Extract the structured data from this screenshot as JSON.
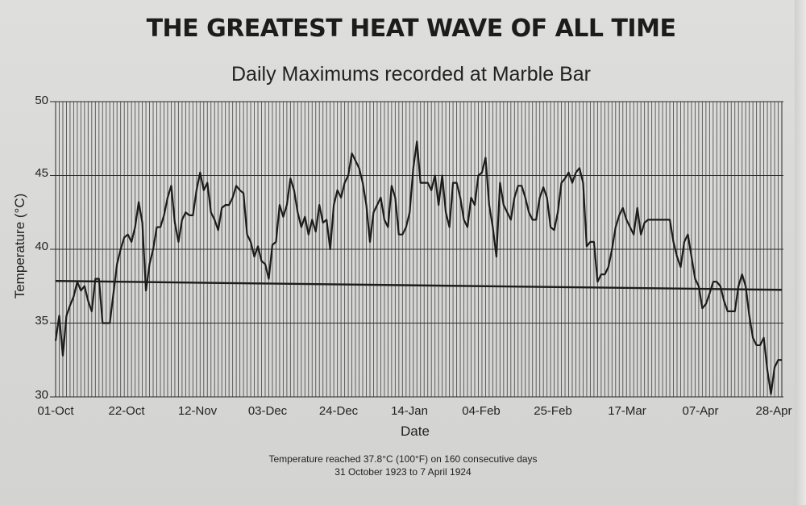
{
  "title": "THE GREATEST HEAT WAVE OF ALL TIME",
  "subtitle": "Daily Maximums recorded at Marble Bar",
  "footnote": {
    "line1": "Temperature reached 37.8°C (100°F) on 160 consecutive days",
    "line2": "31 October 1923 to 7 April 1924"
  },
  "colors": {
    "background": "#d9d9d7",
    "ink": "#1c1c1c",
    "grid": "#3a3a3a"
  },
  "chart_data": {
    "type": "line",
    "title": "Daily Maximums recorded at Marble Bar",
    "xlabel": "Date",
    "ylabel": "Temperature (°C)",
    "ylim": [
      30,
      50
    ],
    "yticks": [
      "50",
      "45",
      "40",
      "35",
      "30"
    ],
    "xtick_labels": [
      "01-Oct",
      "22-Oct",
      "12-Nov",
      "03-Dec",
      "24-Dec",
      "14-Jan",
      "04-Feb",
      "25-Feb",
      "17-Mar",
      "07-Apr",
      "28-Apr"
    ],
    "grid": true,
    "reference_line": {
      "value": 37.8
    },
    "series": [
      {
        "values": [
          33.8,
          35.5,
          32.8,
          35.5,
          36.2,
          36.8,
          37.8,
          37.2,
          37.5,
          36.5,
          35.8,
          38.0,
          38.0,
          35.0,
          35.0,
          35.0,
          37.0,
          39.0,
          40.0,
          40.8,
          41.0,
          40.5,
          41.5,
          43.2,
          41.8,
          37.2,
          39.0,
          40.0,
          41.5,
          41.5,
          42.3,
          43.5,
          44.3,
          41.8,
          40.5,
          42.0,
          42.5,
          42.3,
          42.3,
          44.0,
          45.2,
          44.0,
          44.5,
          42.5,
          42.0,
          41.3,
          42.8,
          43.0,
          43.0,
          43.5,
          44.3,
          44.0,
          43.8,
          41.0,
          40.5,
          39.5,
          40.2,
          39.2,
          39.0,
          38.0,
          40.3,
          40.5,
          43.0,
          42.2,
          43.0,
          44.8,
          44.0,
          42.5,
          41.5,
          42.2,
          41.0,
          42.0,
          41.2,
          43.0,
          41.8,
          42.0,
          40.0,
          43.0,
          44.0,
          43.5,
          44.5,
          45.0,
          46.5,
          46.0,
          45.5,
          44.5,
          43.0,
          40.5,
          42.5,
          43.0,
          43.5,
          42.0,
          41.5,
          44.3,
          43.5,
          41.0,
          41.0,
          41.5,
          42.5,
          45.5,
          47.3,
          44.5,
          44.5,
          44.5,
          44.0,
          45.0,
          43.0,
          45.0,
          42.5,
          41.5,
          44.5,
          44.5,
          43.5,
          42.0,
          41.5,
          43.5,
          43.0,
          45.0,
          45.2,
          46.2,
          43.0,
          41.5,
          39.5,
          44.5,
          43.0,
          42.5,
          42.0,
          43.5,
          44.3,
          44.3,
          43.5,
          42.5,
          42.0,
          42.0,
          43.5,
          44.2,
          43.5,
          41.5,
          41.3,
          42.5,
          44.5,
          44.8,
          45.2,
          44.5,
          45.2,
          45.5,
          44.5,
          40.2,
          40.5,
          40.5,
          37.8,
          38.3,
          38.3,
          38.8,
          40.0,
          41.5,
          42.3,
          42.8,
          42.0,
          41.5,
          41.0,
          42.8,
          41.0,
          41.8,
          42.0,
          42.0,
          42.0,
          42.0,
          42.0,
          42.0,
          42.0,
          40.5,
          39.5,
          38.8,
          40.5,
          41.0,
          39.5,
          38.0,
          37.5,
          36.0,
          36.3,
          37.0,
          37.8,
          37.8,
          37.5,
          36.5,
          35.8,
          35.8,
          35.8,
          37.5,
          38.3,
          37.5,
          35.5,
          34.0,
          33.5,
          33.5,
          34.0,
          31.8,
          30.2,
          32.0,
          32.5,
          32.5
        ]
      }
    ]
  }
}
